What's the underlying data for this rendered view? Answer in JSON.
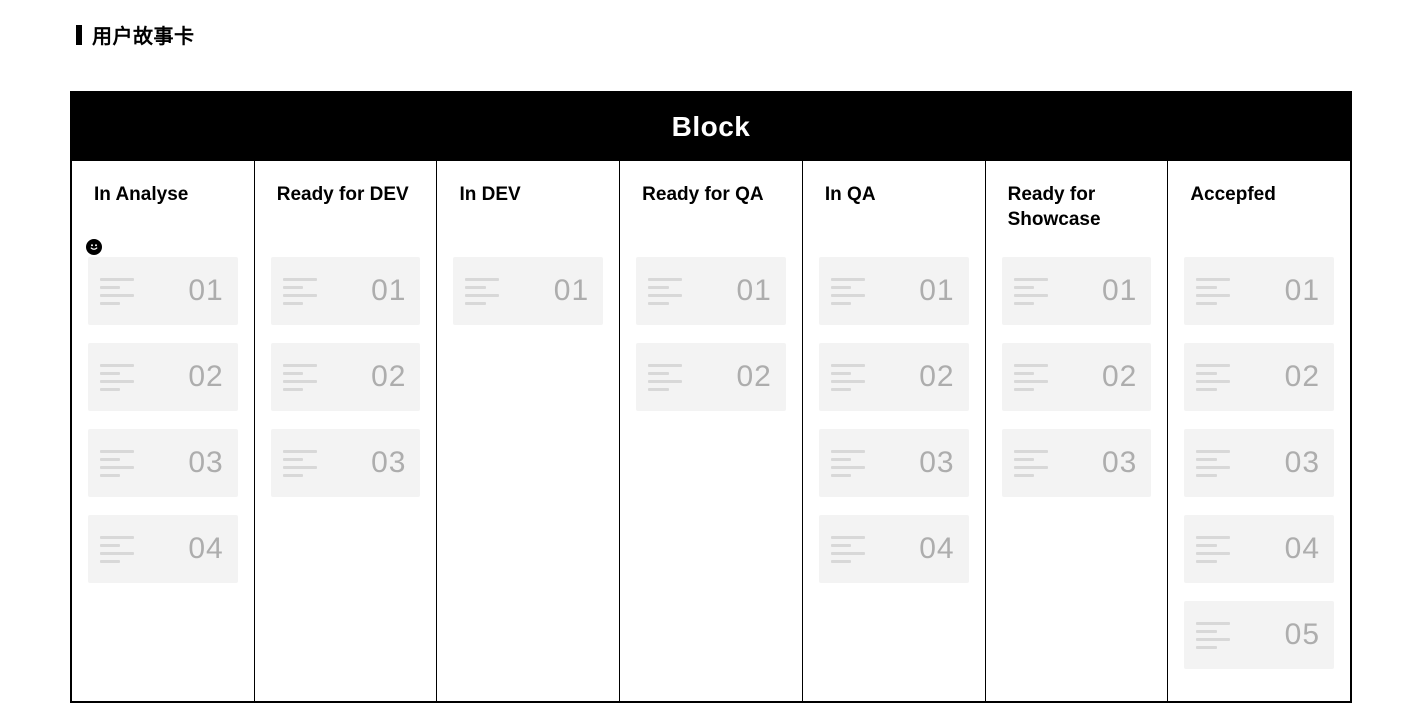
{
  "page_title": "用户故事卡",
  "board": {
    "header_label": "Block",
    "header_bg": "#000000",
    "header_fg": "#ffffff",
    "card_bg": "#f3f3f3",
    "card_num_color": "#adadad",
    "card_icon_line_color": "#d8d8d8",
    "columns": [
      {
        "title": "In Analyse",
        "cards": [
          "01",
          "02",
          "03",
          "04"
        ],
        "has_smiley": true
      },
      {
        "title": "Ready for DEV",
        "cards": [
          "01",
          "02",
          "03"
        ],
        "has_smiley": false
      },
      {
        "title": "In DEV",
        "cards": [
          "01"
        ],
        "has_smiley": false
      },
      {
        "title": "Ready for QA",
        "cards": [
          "01",
          "02"
        ],
        "has_smiley": false
      },
      {
        "title": "In QA",
        "cards": [
          "01",
          "02",
          "03",
          "04"
        ],
        "has_smiley": false
      },
      {
        "title": "Ready for Showcase",
        "cards": [
          "01",
          "02",
          "03"
        ],
        "has_smiley": false
      },
      {
        "title": "Accepfed",
        "cards": [
          "01",
          "02",
          "03",
          "04",
          "05"
        ],
        "has_smiley": false
      }
    ]
  }
}
